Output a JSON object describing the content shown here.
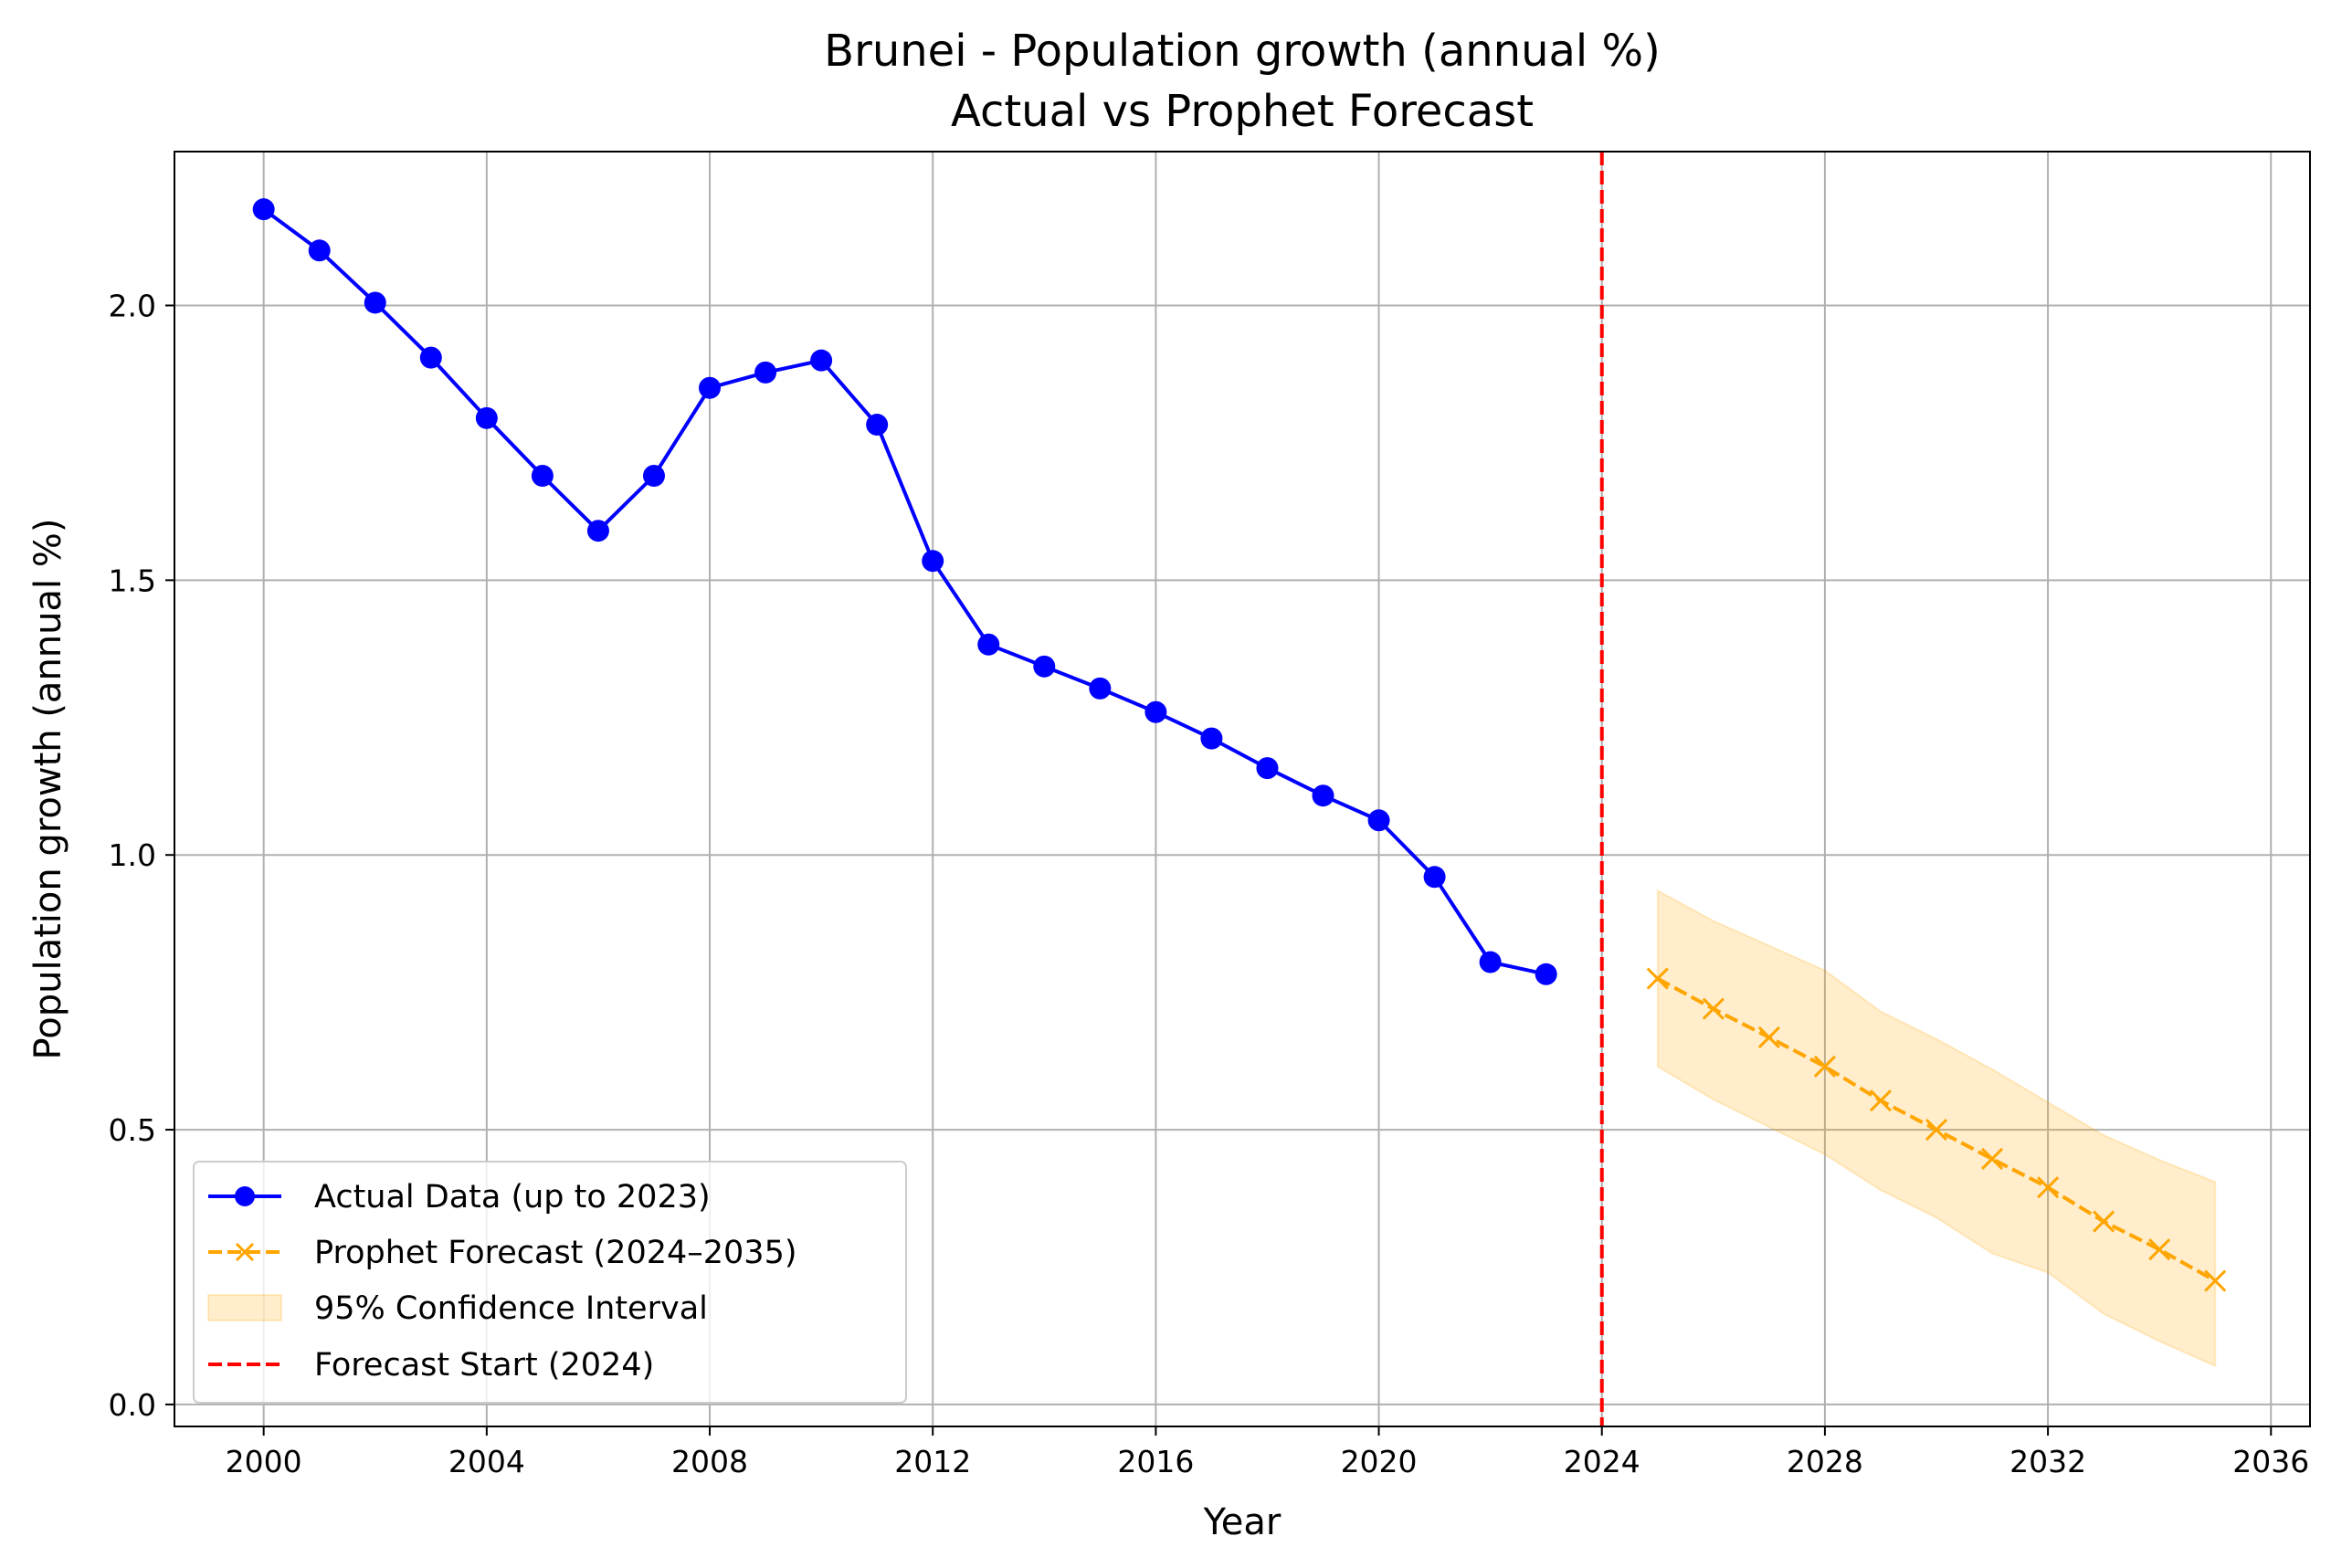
{
  "chart_data": {
    "type": "line",
    "title": "Brunei - Population growth (annual %)",
    "subtitle": "Actual vs Prophet Forecast",
    "xlabel": "Year",
    "ylabel": "Population growth (annual %)",
    "xlim": [
      1998.4,
      2036.7
    ],
    "ylim": [
      -0.04,
      2.28
    ],
    "xticks": [
      2000,
      2004,
      2008,
      2012,
      2016,
      2020,
      2024,
      2028,
      2032,
      2036
    ],
    "yticks": [
      0.0,
      0.5,
      1.0,
      1.5,
      2.0
    ],
    "ytick_labels": [
      "0.0",
      "0.5",
      "1.0",
      "1.5",
      "2.0"
    ],
    "grid": true,
    "legend_position": "lower-left",
    "series": [
      {
        "name": "Actual Data (up to 2023)",
        "style": "solid",
        "marker": "circle",
        "color": "#0000ff",
        "x": [
          2000,
          2001,
          2002,
          2003,
          2004,
          2005,
          2006,
          2007,
          2008,
          2009,
          2010,
          2011,
          2012,
          2013,
          2014,
          2015,
          2016,
          2017,
          2018,
          2019,
          2020,
          2021,
          2022,
          2023
        ],
        "y": [
          2.175,
          2.1,
          2.005,
          1.905,
          1.795,
          1.69,
          1.59,
          1.69,
          1.85,
          1.878,
          1.9,
          1.783,
          1.535,
          1.383,
          1.343,
          1.303,
          1.26,
          1.212,
          1.158,
          1.108,
          1.063,
          0.96,
          0.805,
          0.783
        ]
      },
      {
        "name": "Prophet Forecast (2024–2035)",
        "style": "dashed",
        "marker": "x",
        "color": "#ffa500",
        "x": [
          2025,
          2026,
          2027,
          2028,
          2029,
          2030,
          2031,
          2032,
          2033,
          2034,
          2035
        ],
        "y": [
          0.775,
          0.72,
          0.668,
          0.615,
          0.553,
          0.5,
          0.447,
          0.395,
          0.333,
          0.282,
          0.225
        ]
      }
    ],
    "confidence_interval": {
      "name": "95% Confidence Interval",
      "color": "#ffa500",
      "x": [
        2025,
        2026,
        2027,
        2028,
        2029,
        2030,
        2031,
        2032,
        2033,
        2034,
        2035
      ],
      "lower": [
        0.615,
        0.555,
        0.505,
        0.455,
        0.39,
        0.34,
        0.275,
        0.24,
        0.165,
        0.115,
        0.07
      ],
      "upper": [
        0.935,
        0.88,
        0.835,
        0.79,
        0.715,
        0.665,
        0.61,
        0.55,
        0.49,
        0.445,
        0.405
      ]
    },
    "vline": {
      "name": "Forecast Start (2024)",
      "x": 2024,
      "style": "dashed",
      "color": "#ff0000"
    }
  }
}
